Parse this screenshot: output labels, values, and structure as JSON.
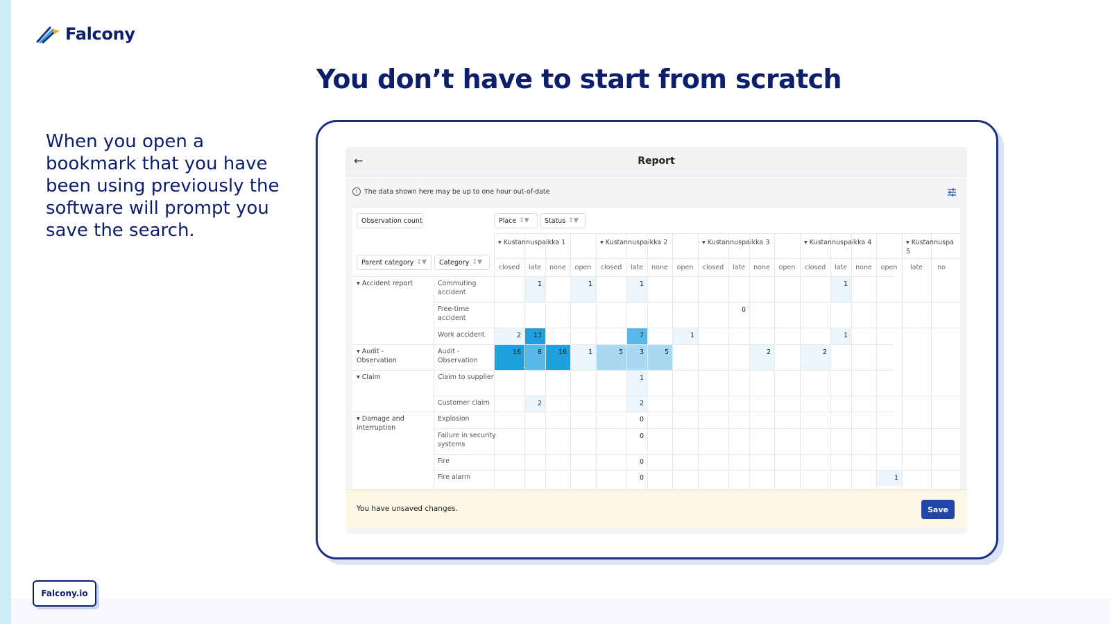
{
  "brand": {
    "name": "Falcony",
    "site": "Falcony.io"
  },
  "slide": {
    "headline": "You don’t have to start from scratch",
    "description": "When you open a bookmark that you have been using previously the software will prompt you save the search."
  },
  "app": {
    "title": "Report",
    "notice": "The data shown here may be up to one hour out-of-date",
    "chips": {
      "measure": "Observation count",
      "place": "Place",
      "status": "Status",
      "parent_category": "Parent category",
      "category": "Category"
    },
    "places": [
      "Kustannuspaikka 1",
      "Kustannuspaikka 2",
      "Kustannuspaikka 3",
      "Kustannuspaikka 4",
      "Kustannuspa 5"
    ],
    "statuses": [
      "closed",
      "late",
      "none",
      "open",
      "closed",
      "late",
      "none",
      "open",
      "closed",
      "late",
      "none",
      "open",
      "closed",
      "late",
      "none",
      "open",
      "late",
      "no"
    ],
    "parents": [
      "Accident report",
      "Audit - Observation",
      "Claim",
      "Damage and interruption"
    ],
    "categories": [
      "Commuting accident",
      "Free-time accident",
      "Work accident",
      "Audit - Observation",
      "Claim to supplier",
      "Customer claim",
      "Explosion",
      "Failure in security systems",
      "Fire",
      "Fire alarm"
    ],
    "rows": [
      [
        "",
        "1",
        "",
        "1",
        "",
        "1",
        "",
        "",
        "",
        "",
        "",
        "",
        "",
        "1",
        "",
        "",
        "",
        ""
      ],
      [
        "",
        "",
        "",
        "",
        "",
        "",
        "",
        "",
        "",
        "0",
        "",
        "",
        "",
        "",
        "",
        "",
        "",
        ""
      ],
      [
        "2",
        "13",
        "",
        "",
        "",
        "7",
        "",
        "1",
        "",
        "",
        "",
        "",
        "",
        "1",
        "",
        "",
        "",
        ""
      ],
      [
        "16",
        "8",
        "16",
        "1",
        "5",
        "3",
        "5",
        "",
        "",
        "",
        "2",
        "",
        "2",
        "",
        "",
        "",
        "",
        ""
      ],
      [
        "",
        "",
        "",
        "",
        "",
        "1",
        "",
        "",
        "",
        "",
        "",
        "",
        "",
        "",
        "",
        "",
        "",
        ""
      ],
      [
        "",
        "2",
        "",
        "",
        "",
        "2",
        "",
        "",
        "",
        "",
        "",
        "",
        "",
        "",
        "",
        "",
        "",
        ""
      ],
      [
        "",
        "",
        "",
        "",
        "",
        "0",
        "",
        "",
        "",
        "",
        "",
        "",
        "",
        "",
        "",
        "",
        "",
        ""
      ],
      [
        "",
        "",
        "",
        "",
        "",
        "0",
        "",
        "",
        "",
        "",
        "",
        "",
        "",
        "",
        "",
        "",
        "",
        ""
      ],
      [
        "",
        "",
        "",
        "",
        "",
        "0",
        "",
        "",
        "",
        "",
        "",
        "",
        "",
        "",
        "",
        "",
        "",
        ""
      ],
      [
        "",
        "",
        "",
        "",
        "",
        "0",
        "",
        "",
        "",
        "",
        "",
        "",
        "",
        "",
        "",
        "1",
        "",
        ""
      ]
    ],
    "unsaved_message": "You have unsaved changes.",
    "save_label": "Save"
  },
  "colors": {
    "navy": "#0d1f6b",
    "save": "#2146a8",
    "heat_high": "#1fa0df",
    "heat_mid": "#a9d9f2",
    "heat_low": "#eaf6fc"
  }
}
